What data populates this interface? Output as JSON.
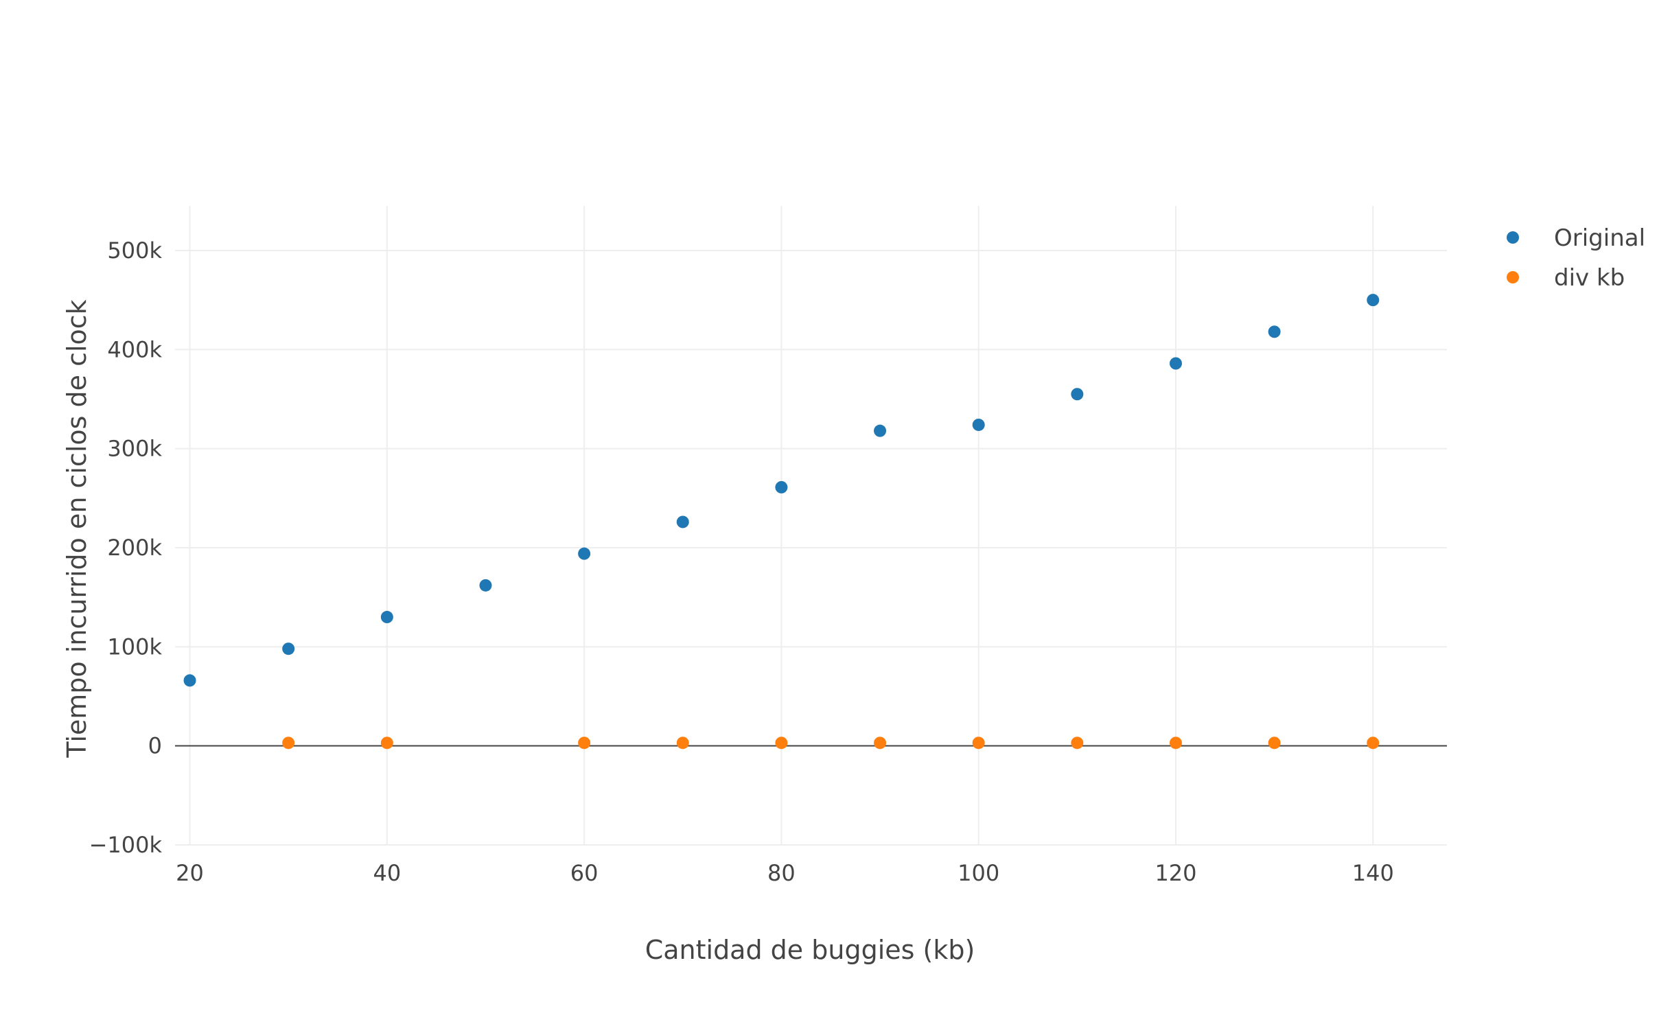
{
  "chart_data": {
    "type": "scatter",
    "title": "",
    "xlabel": "Cantidad de buggies (kb)",
    "ylabel": "Tiempo incurrido en ciclos de clock",
    "xlim": [
      18.5,
      147.5
    ],
    "ylim": [
      -100000,
      545000
    ],
    "x_ticks": [
      20,
      40,
      60,
      80,
      100,
      120,
      140
    ],
    "x_tick_labels": [
      "20",
      "40",
      "60",
      "80",
      "100",
      "120",
      "140"
    ],
    "y_ticks": [
      -100000,
      0,
      100000,
      200000,
      300000,
      400000,
      500000
    ],
    "y_tick_labels": [
      "−100k",
      "0",
      "100k",
      "200k",
      "300k",
      "400k",
      "500k"
    ],
    "grid": true,
    "legend_position": "top-right",
    "series": [
      {
        "name": "Original",
        "color": "#1f77b4",
        "points": [
          {
            "x": 20,
            "y": 66000
          },
          {
            "x": 30,
            "y": 98000
          },
          {
            "x": 40,
            "y": 130000
          },
          {
            "x": 50,
            "y": 162000
          },
          {
            "x": 60,
            "y": 194000
          },
          {
            "x": 70,
            "y": 226000
          },
          {
            "x": 80,
            "y": 261000
          },
          {
            "x": 90,
            "y": 318000
          },
          {
            "x": 100,
            "y": 324000
          },
          {
            "x": 110,
            "y": 355000
          },
          {
            "x": 120,
            "y": 386000
          },
          {
            "x": 130,
            "y": 418000
          },
          {
            "x": 140,
            "y": 450000
          }
        ]
      },
      {
        "name": "div kb",
        "color": "#ff7f0e",
        "points": [
          {
            "x": 30,
            "y": 3000
          },
          {
            "x": 40,
            "y": 3000
          },
          {
            "x": 60,
            "y": 3000
          },
          {
            "x": 70,
            "y": 3000
          },
          {
            "x": 80,
            "y": 3000
          },
          {
            "x": 90,
            "y": 3000
          },
          {
            "x": 100,
            "y": 3000
          },
          {
            "x": 110,
            "y": 3000
          },
          {
            "x": 120,
            "y": 3000
          },
          {
            "x": 130,
            "y": 3000
          },
          {
            "x": 140,
            "y": 3000
          }
        ]
      }
    ]
  }
}
